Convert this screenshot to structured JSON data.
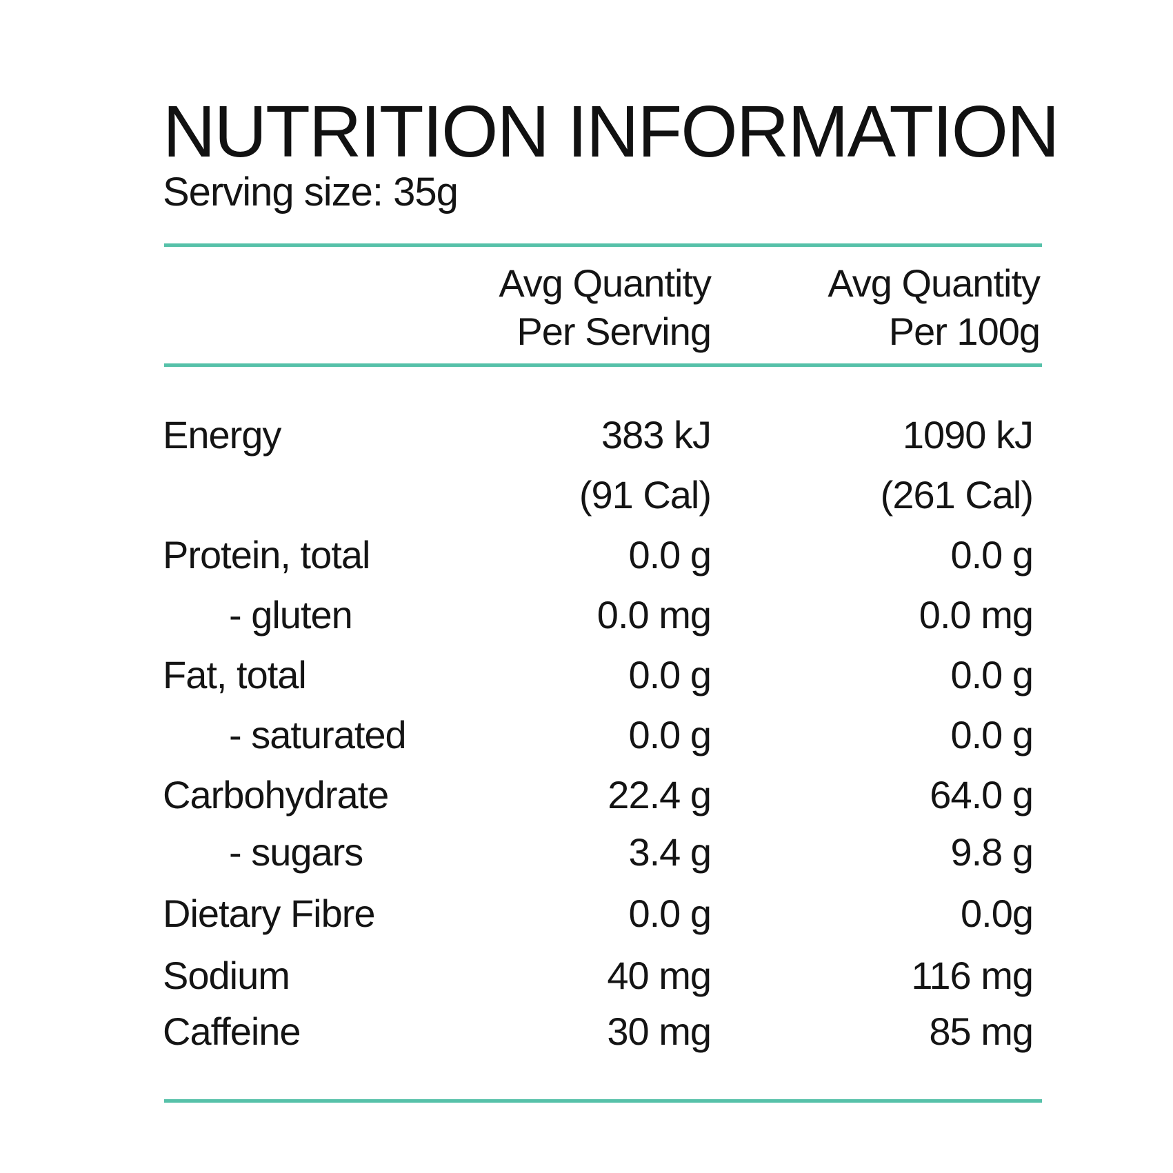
{
  "header": {
    "title": "NUTRITION INFORMATION",
    "serving_size": "Serving size: 35g"
  },
  "columns": {
    "serving_line1": "Avg Quantity",
    "serving_line2": "Per Serving",
    "per100_line1": "Avg Quantity",
    "per100_line2": "Per 100g"
  },
  "rows": [
    {
      "nutrient": "Energy",
      "per_serving": "383 kJ",
      "per_100g": "1090 kJ"
    },
    {
      "nutrient": "",
      "per_serving": "(91 Cal)",
      "per_100g": "(261 Cal)"
    },
    {
      "nutrient": "Protein, total",
      "per_serving": "0.0 g",
      "per_100g": "0.0 g"
    },
    {
      "nutrient": "- gluten",
      "per_serving": "0.0 mg",
      "per_100g": "0.0 mg"
    },
    {
      "nutrient": "Fat, total",
      "per_serving": "0.0 g",
      "per_100g": "0.0 g"
    },
    {
      "nutrient": "- saturated",
      "per_serving": "0.0 g",
      "per_100g": "0.0 g"
    },
    {
      "nutrient": "Carbohydrate",
      "per_serving": "22.4 g",
      "per_100g": "64.0 g"
    },
    {
      "nutrient": "- sugars",
      "per_serving": "3.4 g",
      "per_100g": "9.8 g"
    },
    {
      "nutrient": "Dietary Fibre",
      "per_serving": "0.0 g",
      "per_100g": "0.0g"
    },
    {
      "nutrient": "Sodium",
      "per_serving": "40 mg",
      "per_100g": "116 mg"
    },
    {
      "nutrient": "Caffeine",
      "per_serving": "30 mg",
      "per_100g": "85 mg"
    }
  ],
  "colors": {
    "rule": "#56c1a9",
    "text": "#141414"
  }
}
